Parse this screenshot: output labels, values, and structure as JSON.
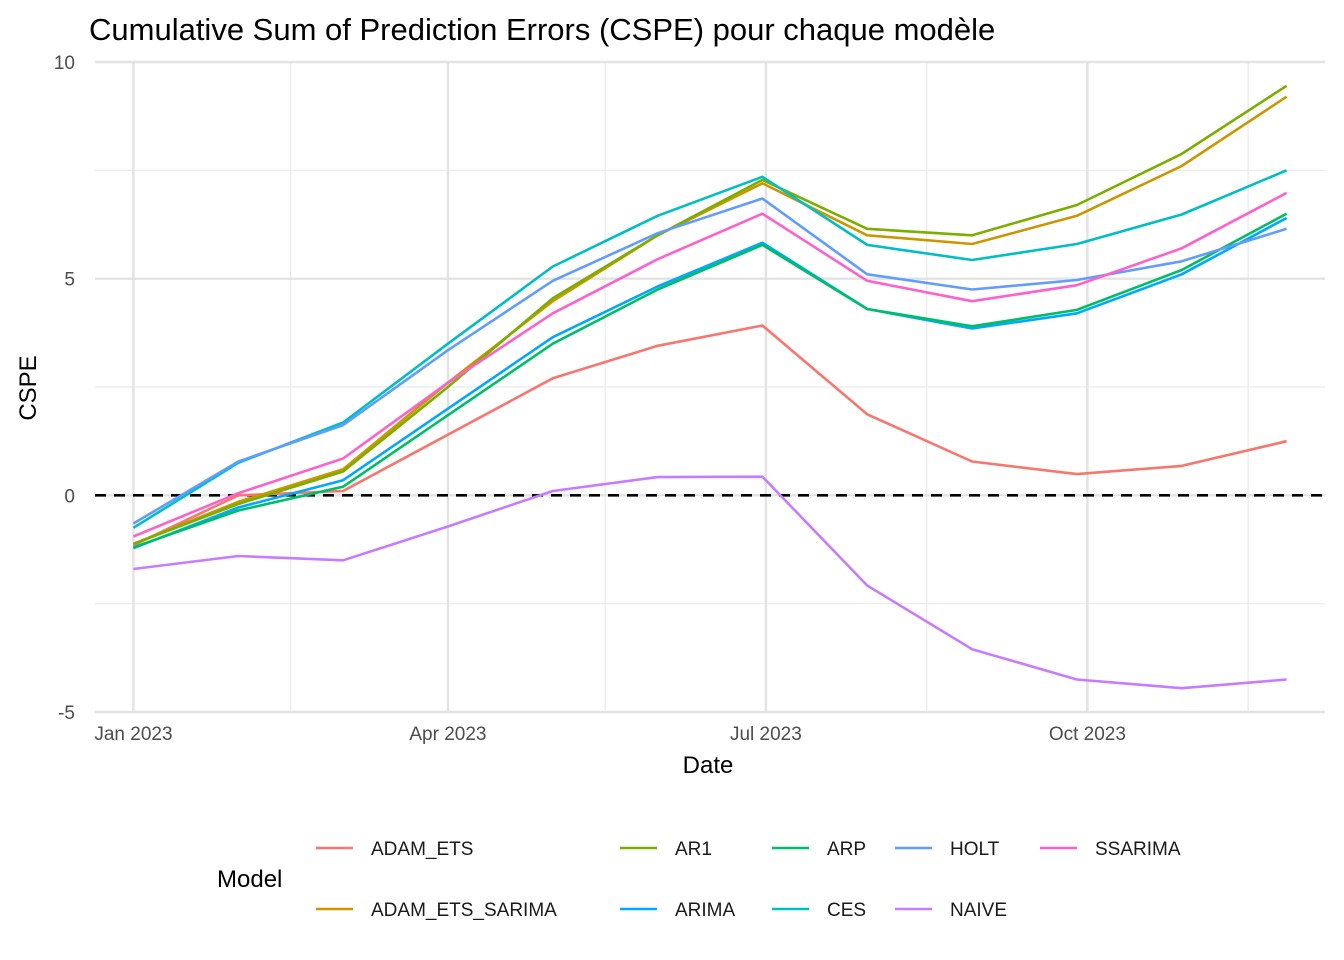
{
  "chart_data": {
    "type": "line",
    "title": "Cumulative Sum of Prediction Errors (CSPE) pour chaque modèle",
    "xlabel": "Date",
    "ylabel": "CSPE",
    "x": [
      "2023-01-01",
      "2023-01-31",
      "2023-03-02",
      "2023-04-01",
      "2023-05-01",
      "2023-05-31",
      "2023-06-30",
      "2023-07-30",
      "2023-08-29",
      "2023-09-28",
      "2023-10-28",
      "2023-11-27"
    ],
    "xlim": [
      "2022-12-21",
      "2023-12-08"
    ],
    "ylim": [
      -5,
      10
    ],
    "x_ticks": [
      {
        "label": "Jan 2023",
        "date": "2023-01-01"
      },
      {
        "label": "Apr 2023",
        "date": "2023-04-01"
      },
      {
        "label": "Jul 2023",
        "date": "2023-07-01"
      },
      {
        "label": "Oct 2023",
        "date": "2023-10-01"
      }
    ],
    "x_minor_ticks": [
      "2023-02-15",
      "2023-05-16",
      "2023-08-16",
      "2023-11-16"
    ],
    "y_ticks": [
      -5,
      0,
      5,
      10
    ],
    "y_minor_ticks": [
      -2.5,
      2.5,
      7.5
    ],
    "grid": true,
    "reference_line": {
      "y": 0,
      "style": "dashed",
      "color": "#000000"
    },
    "legend": {
      "title": "Model",
      "position": "bottom"
    },
    "series": [
      {
        "name": "ADAM_ETS",
        "color": "#F8766D",
        "values": [
          -1.15,
          0.0,
          0.1,
          1.4,
          2.7,
          3.45,
          3.92,
          1.87,
          0.78,
          0.49,
          0.68,
          1.25
        ]
      },
      {
        "name": "ADAM_ETS_SARIMA",
        "color": "#CD9600",
        "values": [
          -1.12,
          -0.15,
          0.6,
          2.6,
          4.48,
          6.0,
          7.2,
          6.0,
          5.8,
          6.45,
          7.6,
          9.2
        ]
      },
      {
        "name": "AR1",
        "color": "#7CAE00",
        "values": [
          -1.12,
          -0.2,
          0.55,
          2.5,
          4.55,
          6.0,
          7.28,
          6.15,
          6.0,
          6.7,
          7.88,
          9.45
        ]
      },
      {
        "name": "ARIMA",
        "color": "#00A9FF",
        "values": [
          -1.22,
          -0.28,
          0.35,
          2.0,
          3.65,
          4.82,
          5.83,
          4.3,
          3.85,
          4.2,
          5.1,
          6.4
        ]
      },
      {
        "name": "ARP",
        "color": "#00BE67",
        "values": [
          -1.2,
          -0.35,
          0.2,
          1.85,
          3.5,
          4.75,
          5.78,
          4.3,
          3.9,
          4.28,
          5.2,
          6.5
        ]
      },
      {
        "name": "CES",
        "color": "#00BFC4",
        "values": [
          -0.75,
          0.75,
          1.68,
          3.5,
          5.28,
          6.45,
          7.35,
          5.78,
          5.43,
          5.8,
          6.48,
          7.5
        ]
      },
      {
        "name": "HOLT",
        "color": "#619CFF",
        "values": [
          -0.65,
          0.78,
          1.62,
          3.35,
          4.95,
          6.05,
          6.85,
          5.1,
          4.75,
          4.97,
          5.4,
          6.15
        ]
      },
      {
        "name": "NAIVE",
        "color": "#C77CFF",
        "values": [
          -1.7,
          -1.4,
          -1.5,
          -0.72,
          0.1,
          0.42,
          0.43,
          -2.08,
          -3.55,
          -4.25,
          -4.45,
          -4.25
        ]
      },
      {
        "name": "SSARIMA",
        "color": "#FF61CC",
        "values": [
          -0.95,
          0.05,
          0.85,
          2.6,
          4.2,
          5.45,
          6.5,
          4.95,
          4.48,
          4.85,
          5.7,
          6.98
        ]
      }
    ]
  }
}
